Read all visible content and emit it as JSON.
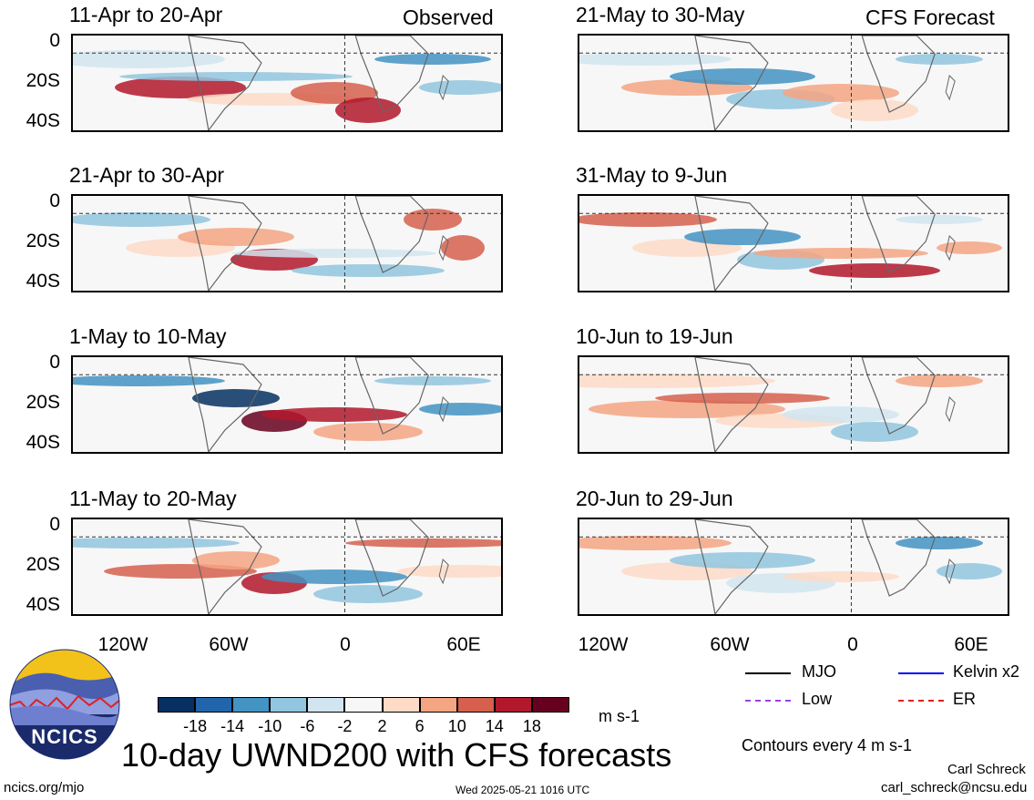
{
  "labels": {
    "observed": "Observed",
    "forecast": "CFS Forecast",
    "units": "m s-1",
    "main_title": "10-day UWND200 with CFS forecasts",
    "contours": "Contours every 4 m s-1",
    "author": "Carl Schreck",
    "email": "carl_schreck@ncsu.edu",
    "site": "ncics.org/mjo",
    "timestamp": "Wed 2025-05-21 1016 UTC",
    "logo_text": "NCICS"
  },
  "legend": [
    {
      "label": "MJO",
      "color": "#000000"
    },
    {
      "label": "Kelvin x2",
      "color": "#0000ff"
    },
    {
      "label": "Low",
      "color": "#a040e0"
    },
    {
      "label": "ER",
      "color": "#e02020"
    }
  ],
  "colorbar": {
    "colors": [
      "#053061",
      "#2166ac",
      "#4393c3",
      "#92c5de",
      "#d1e5f0",
      "#f7f7f7",
      "#fddbc7",
      "#f4a582",
      "#d6604d",
      "#b2182b",
      "#67001f"
    ],
    "labels": [
      "-18",
      "-14",
      "-10",
      "-6",
      "-2",
      "2",
      "6",
      "10",
      "14",
      "18"
    ]
  },
  "chart_data": {
    "type": "heatmap",
    "variable": "UWND200",
    "units": "m s-1",
    "x_ticks": [
      "120W",
      "60W",
      "0",
      "60E"
    ],
    "y_ticks": [
      "0",
      "20S",
      "40S"
    ],
    "panels": [
      {
        "title": "11-Apr to 20-Apr",
        "kind": "observed"
      },
      {
        "title": "21-Apr to 30-Apr",
        "kind": "observed"
      },
      {
        "title": "1-May to 10-May",
        "kind": "observed"
      },
      {
        "title": "11-May to 20-May",
        "kind": "observed"
      },
      {
        "title": "21-May to 30-May",
        "kind": "forecast"
      },
      {
        "title": "31-May to 9-Jun",
        "kind": "forecast"
      },
      {
        "title": "10-Jun to 19-Jun",
        "kind": "forecast"
      },
      {
        "title": "20-Jun to 29-Jun",
        "kind": "forecast"
      }
    ]
  }
}
